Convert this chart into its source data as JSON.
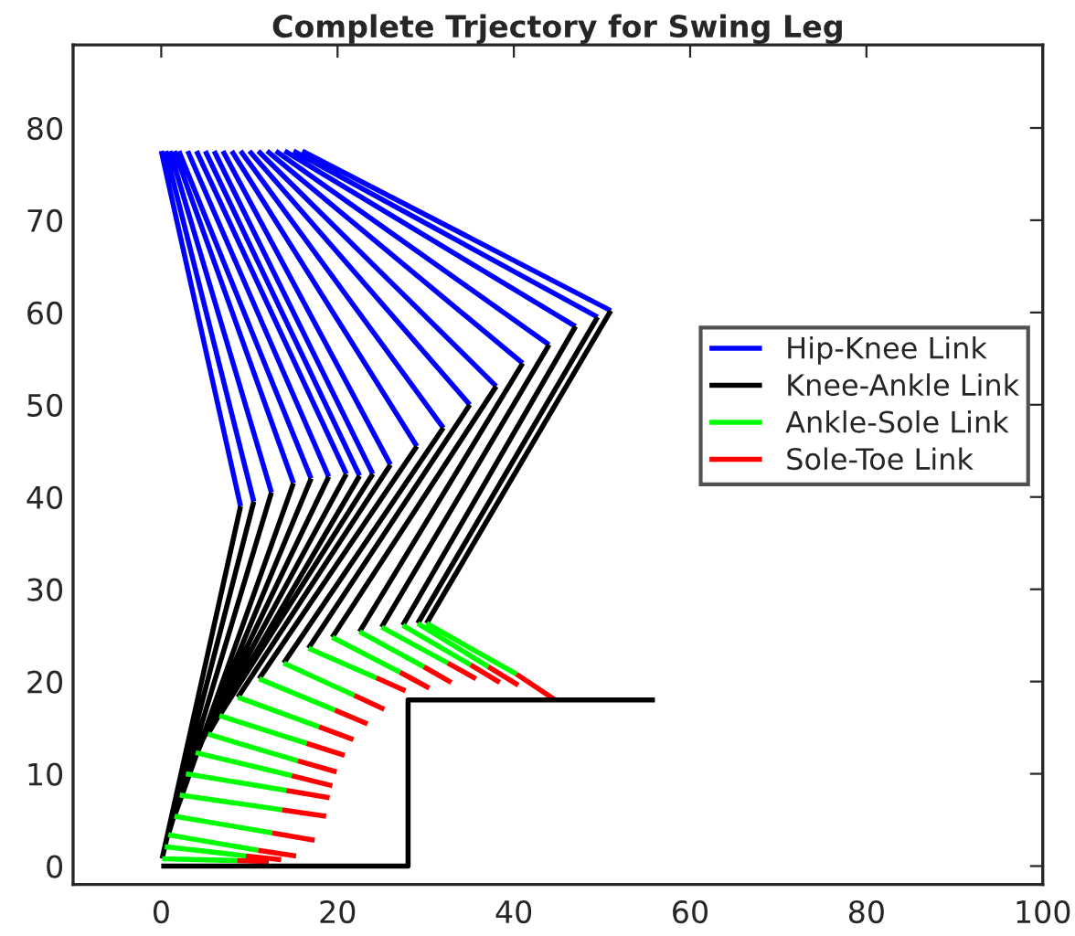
{
  "chart_data": {
    "type": "line",
    "title": "Complete Trjectory for Swing Leg",
    "xlim": [
      -10,
      100
    ],
    "xticks": [
      0,
      20,
      40,
      60,
      80,
      100
    ],
    "ylim": [
      -2,
      89
    ],
    "yticks": [
      0,
      10,
      20,
      30,
      40,
      50,
      60,
      70,
      80
    ],
    "grid": false,
    "legend": "right",
    "marker": "none",
    "line_style": "solid",
    "series": [
      {
        "name": "Hip-Knee Link",
        "color": "#0000ff",
        "x": [
          0,
          9.0,
          null,
          0.5,
          10.5,
          null,
          1,
          12.5,
          null,
          1.5,
          15,
          null,
          2,
          17,
          null,
          3,
          19,
          null,
          4,
          21,
          null,
          5,
          22.5,
          null,
          6,
          24,
          null,
          7,
          26,
          null,
          8,
          29,
          null,
          9,
          32,
          null,
          10,
          35,
          null,
          11,
          38,
          null,
          12,
          41,
          null,
          13,
          44,
          null,
          14,
          47,
          null,
          15,
          49.5,
          null,
          16,
          51
        ],
        "values": [
          77.5,
          39.0,
          null,
          77.5,
          39.5,
          null,
          77.5,
          40.5,
          null,
          77.5,
          41.5,
          null,
          77.5,
          42,
          null,
          77.5,
          42.2,
          null,
          77.5,
          42.5,
          null,
          77.5,
          42.3,
          null,
          77.5,
          42.5,
          null,
          77.5,
          43.5,
          null,
          77.5,
          45.5,
          null,
          77.5,
          47.5,
          null,
          77.5,
          50,
          null,
          77.5,
          52,
          null,
          77.5,
          54.5,
          null,
          77.5,
          56.5,
          null,
          77.5,
          58.5,
          null,
          77.5,
          59.5,
          null,
          77.5,
          60.2
        ]
      },
      {
        "name": "Knee-Ankle Link",
        "color": "#000000",
        "x": [
          9.0,
          0.1,
          null,
          10.5,
          0.4,
          null,
          12.5,
          0.8,
          null,
          15,
          1.5,
          null,
          17,
          2.1,
          null,
          19,
          2.8,
          null,
          21,
          3.9,
          null,
          22.5,
          5.3,
          null,
          24,
          6.6,
          null,
          26,
          8.7,
          null,
          29,
          11.1,
          null,
          32,
          13.9,
          null,
          35,
          16.7,
          null,
          38,
          19.4,
          null,
          41,
          22.5,
          null,
          44,
          25.0,
          null,
          47,
          27.4,
          null,
          49.5,
          29.1,
          null,
          51,
          30.1
        ],
        "values": [
          39.0,
          0.8,
          null,
          39.5,
          2.1,
          null,
          40.5,
          3.4,
          null,
          41.5,
          5.4,
          null,
          42,
          7.7,
          null,
          42.2,
          10.0,
          null,
          42.5,
          12.3,
          null,
          42.3,
          14.3,
          null,
          42.5,
          16.3,
          null,
          43.5,
          18.3,
          null,
          45.5,
          20.3,
          null,
          47.5,
          22.0,
          null,
          50,
          23.6,
          null,
          52,
          24.8,
          null,
          54.5,
          25.4,
          null,
          56.5,
          25.9,
          null,
          58.5,
          26.1,
          null,
          59.5,
          26.3,
          null,
          60.2,
          26.3
        ]
      },
      {
        "name": "Ankle-Sole Link",
        "color": "#00ff00",
        "x": [
          0.1,
          8.6,
          null,
          0.4,
          9.6,
          null,
          0.8,
          11.0,
          null,
          1.5,
          12.6,
          null,
          2.1,
          13.7,
          null,
          2.8,
          14.2,
          null,
          3.9,
          14.8,
          null,
          5.3,
          15.5,
          null,
          6.6,
          16.5,
          null,
          8.7,
          17.9,
          null,
          11.1,
          19.7,
          null,
          13.9,
          21.9,
          null,
          16.7,
          24.4,
          null,
          19.4,
          27.1,
          null,
          22.5,
          29.8,
          null,
          25.0,
          32.5,
          null,
          27.4,
          35.1,
          null,
          29.1,
          37.1,
          null,
          30.1,
          40.3
        ],
        "values": [
          0.8,
          0.6,
          null,
          2.1,
          1.1,
          null,
          3.4,
          1.7,
          null,
          5.4,
          3.6,
          null,
          7.7,
          6.1,
          null,
          10.0,
          8.2,
          null,
          12.3,
          9.8,
          null,
          14.3,
          11.4,
          null,
          16.3,
          13.3,
          null,
          18.3,
          15.1,
          null,
          20.3,
          16.9,
          null,
          22.0,
          18.5,
          null,
          23.6,
          20.4,
          null,
          24.8,
          21.0,
          null,
          25.4,
          21.6,
          null,
          25.9,
          22.0,
          null,
          26.1,
          21.8,
          null,
          26.3,
          21.6,
          null,
          26.3,
          20.8
        ]
      },
      {
        "name": "Sole-Toe Link",
        "color": "#ff0000",
        "x": [
          8.6,
          12.2,
          null,
          9.6,
          13.6,
          null,
          11.0,
          15.3,
          null,
          12.6,
          17.4,
          null,
          13.7,
          18.7,
          null,
          14.2,
          19.1,
          null,
          14.8,
          19.4,
          null,
          15.5,
          19.9,
          null,
          16.5,
          20.8,
          null,
          17.9,
          21.8,
          null,
          19.7,
          23.4,
          null,
          21.9,
          25.3,
          null,
          24.4,
          27.7,
          null,
          27.1,
          30.4,
          null,
          29.8,
          32.9,
          null,
          32.5,
          35.7,
          null,
          35.1,
          38.4,
          null,
          37.1,
          40.5,
          null,
          40.3,
          44.7
        ],
        "values": [
          0.6,
          0.5,
          null,
          1.1,
          0.7,
          null,
          1.7,
          1.1,
          null,
          3.6,
          2.8,
          null,
          6.1,
          5.4,
          null,
          8.2,
          7.4,
          null,
          9.8,
          8.7,
          null,
          11.4,
          10.2,
          null,
          13.3,
          12.0,
          null,
          15.1,
          13.7,
          null,
          16.9,
          15.4,
          null,
          18.5,
          17.0,
          null,
          20.4,
          19.0,
          null,
          21.0,
          19.3,
          null,
          21.6,
          19.9,
          null,
          22.0,
          20.3,
          null,
          21.8,
          19.9,
          null,
          21.6,
          19.6,
          null,
          20.8,
          18.0
        ]
      },
      {
        "color": "#000000",
        "x": [
          0,
          28,
          28,
          56
        ],
        "values": [
          0,
          0,
          18,
          18
        ]
      }
    ]
  }
}
